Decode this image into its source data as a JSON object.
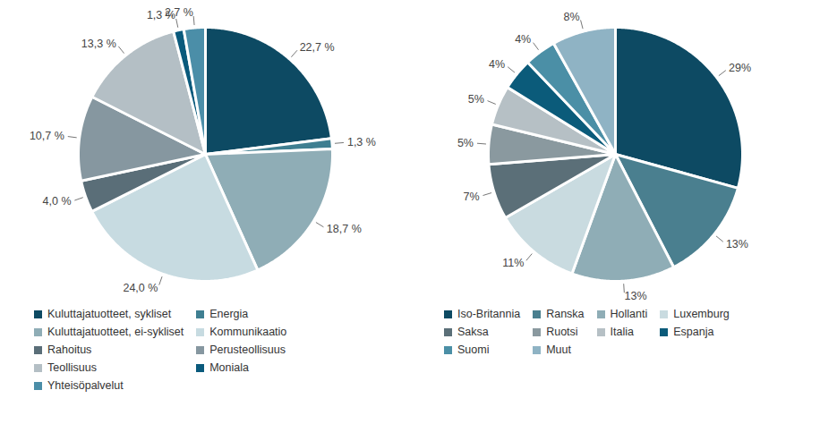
{
  "chart_data": [
    {
      "type": "pie",
      "categories": [
        "Kuluttajatuotteet, sykliset",
        "Energia",
        "Kuluttajatuotteet, ei-sykliset",
        "Kommunikaatio",
        "Rahoitus",
        "Perusteollisuus",
        "Teollisuus",
        "Moniala",
        "Yhteisöpalvelut"
      ],
      "values": [
        22.7,
        1.3,
        18.7,
        24.0,
        4.0,
        10.7,
        13.3,
        1.3,
        2.7
      ],
      "value_labels": [
        "22,7 %",
        "1,3 %",
        "18,7 %",
        "24,0 %",
        "4,0 %",
        "10,7 %",
        "13,3 %",
        "1,3 %",
        "2,7 %"
      ],
      "colors": [
        "#0d4a63",
        "#3f7f91",
        "#8fadb6",
        "#c7dbe1",
        "#5a6e78",
        "#8697a0",
        "#b4bfc5",
        "#0a5a7c",
        "#4b8ea8"
      ],
      "data_labels": true,
      "legend": "bottom"
    },
    {
      "type": "pie",
      "categories": [
        "Iso-Britannia",
        "Ranska",
        "Hollanti",
        "Luxemburg",
        "Saksa",
        "Ruotsi",
        "Italia",
        "Espanja",
        "Suomi",
        "Muut"
      ],
      "values": [
        29,
        13,
        13,
        11,
        7,
        5,
        5,
        4,
        4,
        8
      ],
      "value_labels": [
        "29%",
        "13%",
        "13%",
        "11%",
        "7%",
        "5%",
        "5%",
        "4%",
        "4%",
        "8%"
      ],
      "colors": [
        "#0d4a63",
        "#4a7f8f",
        "#8fadb6",
        "#c9dbe0",
        "#5b6f78",
        "#8a999f",
        "#b6c0c5",
        "#0b5b7a",
        "#4b8fa6",
        "#8fb3c4"
      ],
      "data_labels": true,
      "legend": "bottom"
    }
  ]
}
